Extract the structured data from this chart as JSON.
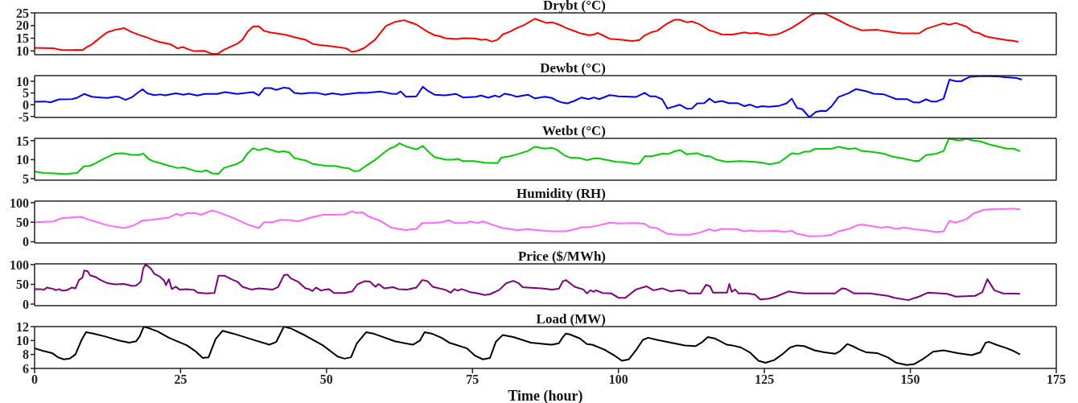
{
  "chart_data": [
    {
      "type": "line",
      "title": "Drybt (°C)",
      "color": "#ff0000",
      "xlim": [
        0,
        175
      ],
      "xticks": [
        0,
        25,
        50,
        75,
        100,
        125,
        150,
        175
      ],
      "ylim": [
        8.5,
        25
      ],
      "yticks": [
        10,
        15,
        20,
        25
      ],
      "tick_labels": "y",
      "x": [
        0,
        3.3,
        4.5,
        6.4,
        7.3,
        8.2,
        9,
        9.7,
        10.4,
        11.6,
        12.5,
        13.8,
        15.3,
        16.5,
        17.8,
        19,
        20.2,
        21.4,
        23.3,
        24.5,
        25.4,
        26.4,
        27.3,
        29.1,
        30.4,
        31.3,
        32.5,
        34.7,
        35.6,
        36.5,
        37.4,
        38.4,
        39.3,
        40.5,
        41.7,
        43.3,
        44.5,
        46.4,
        47.6,
        48.8,
        50,
        51.9,
        53.4,
        54.3,
        55.3,
        56.5,
        58.3,
        60.2,
        61.7,
        63.3,
        65.4,
        67.3,
        68.5,
        69.4,
        70.3,
        72.2,
        73.4,
        75.3,
        76.5,
        77.4,
        78.3,
        79.3,
        80.2,
        81.4,
        82.6,
        83.9,
        85.7,
        87.7,
        88.6,
        89.8,
        91,
        92.5,
        93.7,
        94.9,
        95.8,
        96.4,
        97.3,
        98.5,
        100.6,
        102.4,
        103.6,
        104.5,
        105.7,
        106.6,
        108.1,
        109.6,
        110.5,
        111.7,
        112.6,
        113.8,
        115.6,
        116.5,
        117.7,
        119.5,
        121.6,
        122.5,
        123.7,
        125.8,
        127,
        127.9,
        129.7,
        131.2,
        133,
        133.8,
        135.3,
        137.2,
        139.6,
        141.7,
        144.3,
        146.7,
        148.5,
        151.5,
        152.7,
        155.7,
        156.6,
        157.8,
        159.6,
        160.8,
        161.7,
        162.8,
        164.3,
        166.4,
        167.6,
        168.5
      ],
      "values": [
        11.2,
        11.0,
        10.4,
        10.3,
        10.4,
        10.3,
        11.6,
        12.4,
        13.7,
        15.9,
        17.4,
        18.3,
        19.0,
        17.6,
        16.4,
        15.5,
        14.4,
        13.5,
        12.6,
        11.0,
        11.5,
        10.6,
        9.9,
        10.0,
        8.8,
        8.8,
        10.5,
        12.8,
        14.4,
        17.6,
        19.6,
        19.7,
        17.9,
        17.2,
        16.8,
        16.2,
        15.4,
        14.4,
        12.8,
        12.3,
        12.1,
        11.5,
        11.0,
        9.6,
        10.0,
        11.2,
        14.4,
        19.9,
        21.4,
        22.1,
        20.4,
        17.6,
        16.2,
        15.8,
        15.0,
        14.7,
        15.0,
        14.9,
        14.4,
        14.5,
        13.7,
        14.4,
        16.5,
        17.6,
        19.0,
        20.3,
        22.7,
        21.0,
        21.3,
        20.4,
        19.1,
        17.8,
        16.8,
        16.2,
        16.4,
        17.1,
        16.2,
        14.8,
        14.4,
        13.9,
        14.3,
        16.1,
        17.4,
        17.9,
        20.4,
        22.3,
        22.3,
        21.3,
        21.6,
        20.6,
        18.1,
        17.5,
        16.5,
        16.4,
        17.3,
        16.9,
        17.1,
        16.2,
        16.4,
        17.1,
        19.1,
        21.3,
        24.2,
        24.8,
        24.8,
        22.7,
        19.9,
        18.1,
        18.3,
        17.5,
        16.9,
        16.9,
        18.7,
        20.9,
        20.3,
        21.0,
        19.6,
        17.5,
        17.1,
        15.8,
        15.1,
        14.3,
        14.0,
        13.6
      ]
    },
    {
      "type": "line",
      "title": "Dewbt (°C)",
      "color": "#0000ff",
      "xlim": [
        0,
        175
      ],
      "xticks": [
        0,
        25,
        50,
        75,
        100,
        125,
        150,
        175
      ],
      "ylim": [
        -5.4,
        12.4
      ],
      "yticks": [
        -5,
        0,
        5,
        10
      ],
      "tick_labels": "y",
      "x": [
        0,
        1.8,
        2.7,
        4.2,
        6.4,
        7.3,
        8.5,
        9.8,
        11.3,
        12.5,
        13.8,
        14.4,
        15.6,
        16.8,
        17.4,
        18.5,
        19.3,
        20.5,
        21.5,
        22.4,
        24.2,
        25.5,
        26.4,
        27.9,
        29.1,
        31.3,
        32.6,
        34.7,
        36.5,
        37.4,
        38.4,
        39.4,
        40.5,
        41.4,
        42.7,
        43.6,
        44.5,
        45.7,
        47,
        48.5,
        49.8,
        51,
        52.6,
        54.1,
        55.6,
        56.8,
        59.3,
        61.1,
        62,
        62.7,
        63.6,
        65.4,
        66.5,
        67.3,
        68.5,
        70.3,
        72.2,
        73.4,
        75.6,
        76.5,
        77.7,
        78.9,
        79.6,
        80.5,
        81.4,
        82.6,
        84.5,
        85.7,
        87.4,
        88.6,
        89.5,
        90.4,
        91.3,
        92.5,
        93.7,
        94.9,
        95.8,
        96.7,
        98.5,
        100,
        103,
        104.5,
        105.4,
        106.3,
        107.5,
        108.4,
        110.5,
        111.7,
        112.6,
        113.5,
        114.7,
        115.6,
        116.5,
        117.7,
        118.9,
        120.4,
        121.6,
        122.5,
        123.7,
        124.6,
        125.8,
        127.6,
        128.8,
        129.7,
        130.6,
        131.5,
        132.7,
        133.8,
        134.7,
        135.6,
        136.5,
        137.7,
        139.5,
        140.7,
        142.5,
        143.7,
        145.5,
        147.6,
        149.4,
        150.6,
        151.5,
        152.7,
        153.6,
        154.5,
        155.7,
        156.7,
        157.8,
        158.7,
        160.2,
        162.3,
        164.6,
        166.4,
        168.2,
        169.1
      ],
      "values": [
        1.3,
        1.4,
        1.0,
        2.3,
        2.4,
        3.0,
        4.6,
        3.4,
        3.1,
        2.9,
        3.4,
        3.4,
        2.1,
        3.4,
        4.6,
        6.6,
        4.9,
        4.1,
        4.4,
        4.0,
        4.9,
        4.3,
        4.7,
        3.9,
        4.6,
        4.6,
        5.4,
        4.6,
        5.1,
        5.4,
        4.0,
        7.1,
        7.1,
        6.3,
        7.3,
        7.0,
        5.0,
        4.7,
        5.0,
        5.0,
        4.3,
        4.9,
        4.3,
        4.7,
        5.1,
        5.0,
        5.6,
        4.7,
        4.6,
        5.7,
        3.4,
        3.6,
        7.7,
        6.0,
        4.3,
        4.0,
        4.6,
        3.1,
        3.4,
        3.9,
        3.0,
        3.9,
        3.3,
        4.7,
        4.3,
        3.4,
        4.3,
        2.7,
        3.4,
        2.9,
        1.7,
        0.9,
        0.6,
        1.7,
        3.1,
        2.4,
        3.1,
        2.4,
        4.1,
        3.6,
        3.3,
        5.1,
        3.6,
        3.6,
        2.3,
        -1.6,
        0,
        -1.7,
        -1.6,
        0.6,
        0.7,
        2.6,
        1.0,
        1.6,
        0.7,
        0.7,
        -0.6,
        0.1,
        -1.1,
        -0.6,
        -0.9,
        -0.4,
        0.6,
        2.6,
        -1.4,
        -1.9,
        -5.3,
        -3.1,
        -2.6,
        -2.7,
        -0.7,
        3.3,
        5.0,
        6.7,
        5.7,
        4.7,
        4.4,
        2.4,
        2.4,
        1.0,
        0.9,
        2.3,
        1.4,
        1.4,
        2.6,
        10.7,
        10.0,
        10.0,
        11.9,
        12.2,
        12.1,
        11.7,
        11.4,
        10.7
      ]
    },
    {
      "type": "line",
      "title": "Wetbt (°C)",
      "color": "#00cc00",
      "xlim": [
        0,
        175
      ],
      "xticks": [
        0,
        25,
        50,
        75,
        100,
        125,
        150,
        175
      ],
      "ylim": [
        4.6,
        15.6
      ],
      "yticks": [
        5,
        10,
        15
      ],
      "tick_labels": "y",
      "x": [
        0,
        1.5,
        3.3,
        5.5,
        6.4,
        7.3,
        8.4,
        9.5,
        10.4,
        11.9,
        13.8,
        15,
        16.5,
        17.8,
        18.6,
        19.6,
        20.5,
        23,
        24.5,
        25.5,
        27.6,
        28.5,
        29.4,
        30.4,
        31.5,
        32.4,
        34.7,
        35.6,
        36.5,
        37.4,
        38.4,
        39.6,
        41.7,
        42.7,
        43.6,
        44.5,
        46.4,
        47.6,
        49.8,
        51.6,
        52.9,
        53.8,
        54.7,
        55.6,
        56.5,
        58.3,
        59.9,
        60.8,
        61.8,
        62.5,
        63.6,
        65.4,
        66.5,
        67.6,
        68.5,
        70.4,
        71.6,
        72.5,
        73.4,
        75.3,
        77.1,
        79.3,
        79.9,
        81.4,
        82.6,
        84.5,
        85.7,
        87.4,
        88.6,
        89.5,
        90.7,
        91.6,
        93.4,
        94.6,
        95.8,
        96.7,
        99.7,
        101.2,
        102.7,
        103.6,
        104.5,
        105.7,
        107.5,
        108.6,
        109.6,
        110.6,
        111.7,
        113.5,
        114.7,
        115.6,
        116.8,
        118.6,
        120.7,
        123.4,
        124.6,
        125.8,
        126.7,
        127.6,
        129.7,
        130.9,
        131.8,
        132.7,
        133.6,
        136.6,
        137.7,
        139.5,
        140.7,
        141.6,
        143.1,
        145.5,
        146.7,
        149.1,
        150.6,
        151.5,
        152.7,
        154.5,
        155.7,
        156.6,
        158.4,
        159.6,
        160.8,
        162,
        163.5,
        166.5,
        167.7,
        168.8
      ],
      "values": [
        6.9,
        6.5,
        6.4,
        6.2,
        6.4,
        6.5,
        8.2,
        8.4,
        9.0,
        10.3,
        11.6,
        11.7,
        11.3,
        11.2,
        11.6,
        10.1,
        9.5,
        8.4,
        7.8,
        8.0,
        7.0,
        6.8,
        7.2,
        6.4,
        6.3,
        7.8,
        8.9,
        9.7,
        11.7,
        13.0,
        12.5,
        13.0,
        12.0,
        12.2,
        11.9,
        10.4,
        9.8,
        8.9,
        8.4,
        8.3,
        7.9,
        7.7,
        7.0,
        7.1,
        8.1,
        9.9,
        11.9,
        12.9,
        13.5,
        14.3,
        13.5,
        12.7,
        13.6,
        11.9,
        10.7,
        10.0,
        10.0,
        10.2,
        9.6,
        9.6,
        9.2,
        9.1,
        10.5,
        10.9,
        11.4,
        12.3,
        13.4,
        12.9,
        13.1,
        12.6,
        11.2,
        10.6,
        10.4,
        9.9,
        10.3,
        10.3,
        9.4,
        9.3,
        8.9,
        9.0,
        10.9,
        10.9,
        11.6,
        11.5,
        12.2,
        12.5,
        11.4,
        11.7,
        11.0,
        10.9,
        10.0,
        9.4,
        9.6,
        9.4,
        9.2,
        8.8,
        9.0,
        9.3,
        11.7,
        11.5,
        12.1,
        12.1,
        12.8,
        12.9,
        13.4,
        12.8,
        13.0,
        12.3,
        12.1,
        11.6,
        10.9,
        10.2,
        9.7,
        9.7,
        11.2,
        11.6,
        12.3,
        15.5,
        15.0,
        15.5,
        15.0,
        14.8,
        14.0,
        12.9,
        12.9,
        12.2
      ]
    },
    {
      "type": "line",
      "title": "Humidity (RH)",
      "color": "#ff66ff",
      "xlim": [
        0,
        175
      ],
      "xticks": [
        0,
        25,
        50,
        75,
        100,
        125,
        150,
        175
      ],
      "ylim": [
        -3,
        104
      ],
      "yticks": [
        0,
        50,
        100
      ],
      "tick_labels": "y",
      "x": [
        0,
        3.3,
        4.5,
        6,
        7.9,
        9,
        12.5,
        15.3,
        17,
        18.4,
        20,
        23,
        24.3,
        25.1,
        26,
        27.6,
        28.5,
        30.4,
        31.6,
        34,
        36.5,
        38.4,
        39.3,
        40.8,
        42,
        43.9,
        45.1,
        47.6,
        49.4,
        51.3,
        53.1,
        54.4,
        55,
        56.2,
        57.2,
        59.3,
        61.1,
        62.3,
        63.6,
        65.4,
        66.4,
        68,
        69.7,
        71,
        71.9,
        74,
        74.6,
        75.9,
        76.8,
        78.3,
        80.2,
        81.4,
        82.6,
        84.5,
        87.4,
        88.6,
        91,
        92.5,
        93.7,
        94.9,
        96.4,
        98.5,
        100,
        103,
        104.5,
        105.4,
        106.6,
        108.4,
        110.2,
        112.3,
        113.8,
        115.6,
        116.5,
        117.7,
        120.4,
        121.6,
        122.5,
        123.7,
        127,
        128.4,
        129.7,
        130.6,
        131.5,
        132.7,
        135.3,
        136.5,
        137.7,
        139.5,
        141,
        141.9,
        144.9,
        146.1,
        147.6,
        148.8,
        149.7,
        150.6,
        152.7,
        154.5,
        155.7,
        156.7,
        157.8,
        159.6,
        160.8,
        162.6,
        164.7,
        166.8,
        167.4,
        168.8
      ],
      "values": [
        50,
        52,
        60,
        62,
        64,
        58,
        42,
        35,
        42,
        54,
        56,
        62,
        72,
        67,
        73,
        73,
        69,
        80,
        75,
        61,
        44,
        35,
        50,
        50,
        56,
        55,
        52,
        63,
        69,
        69,
        70,
        78,
        74,
        75,
        65,
        53,
        36,
        33,
        30,
        33,
        48,
        48,
        50,
        55,
        48,
        48,
        52,
        48,
        52,
        44,
        35,
        33,
        30,
        32,
        28,
        27,
        27,
        32,
        37,
        37,
        41,
        49,
        47,
        48,
        46,
        37,
        35,
        20,
        18,
        18,
        23,
        32,
        28,
        33,
        32,
        27,
        29,
        27,
        28,
        26,
        28,
        20,
        18,
        14,
        15,
        18,
        27,
        33,
        43,
        44,
        36,
        38,
        33,
        36,
        35,
        32,
        29,
        25,
        27,
        53,
        49,
        58,
        72,
        82,
        84,
        84,
        85,
        83
      ]
    },
    {
      "type": "line",
      "title": "Price ($/MWh)",
      "color": "#800080",
      "xlim": [
        0,
        175
      ],
      "xticks": [
        0,
        25,
        50,
        75,
        100,
        125,
        150,
        175
      ],
      "ylim": [
        -4,
        102
      ],
      "yticks": [
        0,
        50,
        100
      ],
      "tick_labels": "y",
      "x": [
        0,
        1,
        1.6,
        2.1,
        3.3,
        3.6,
        4.2,
        4.7,
        5.5,
        6.4,
        7,
        7.6,
        8.2,
        8.5,
        9.1,
        9.5,
        10.4,
        11.3,
        12.5,
        13.8,
        15.3,
        16.8,
        17.4,
        18.2,
        18.6,
        19,
        19.9,
        20.5,
        21.5,
        22.2,
        22.5,
        23,
        23.5,
        24.2,
        24.8,
        26.1,
        27.3,
        27.9,
        29.4,
        30.8,
        31.5,
        32.5,
        33.7,
        34.7,
        35.6,
        37.1,
        38.4,
        40.8,
        41.7,
        42.7,
        43.3,
        43.9,
        45.1,
        46.4,
        47,
        47.6,
        48.2,
        49.1,
        49.7,
        50.4,
        51.3,
        53.1,
        54.4,
        55.3,
        56.5,
        57.4,
        58.4,
        58.9,
        59.9,
        61.4,
        62.3,
        63.9,
        65.4,
        66.4,
        67.3,
        68.2,
        70.4,
        71.3,
        71.9,
        72.5,
        73.1,
        74,
        74.6,
        75.6,
        77.1,
        78,
        79.6,
        80.8,
        82,
        82.9,
        83.6,
        84.5,
        86.8,
        88.6,
        89.8,
        90.5,
        91,
        92.5,
        94,
        94.6,
        95.2,
        95.8,
        96.1,
        97.3,
        98.8,
        100,
        101.2,
        103,
        104.8,
        106,
        107.5,
        109,
        110.2,
        111.4,
        112,
        114.1,
        115,
        115.7,
        116.2,
        118.6,
        119,
        119.4,
        120,
        120.6,
        122.1,
        123.4,
        124.3,
        125.8,
        127,
        129.1,
        130,
        131.8,
        137.1,
        138.3,
        138.9,
        140.4,
        143.1,
        146.1,
        147.3,
        149.7,
        150.6,
        151.5,
        153,
        156.3,
        157.8,
        161.1,
        162.3,
        163.2,
        164.4,
        165.9,
        168.8
      ],
      "values": [
        38,
        38,
        36,
        42,
        38,
        35,
        38,
        34,
        35,
        42,
        40,
        61,
        67,
        85,
        83,
        73,
        69,
        61,
        53,
        50,
        51,
        46,
        47,
        57,
        90,
        101,
        90,
        77,
        69,
        59,
        48,
        63,
        38,
        44,
        37,
        38,
        36,
        29,
        27,
        28,
        72,
        72,
        63,
        57,
        44,
        37,
        40,
        37,
        43,
        73,
        75,
        65,
        57,
        40,
        38,
        33,
        42,
        34,
        37,
        38,
        28,
        28,
        32,
        50,
        58,
        57,
        44,
        51,
        40,
        43,
        38,
        37,
        42,
        61,
        58,
        44,
        36,
        29,
        38,
        34,
        38,
        34,
        30,
        28,
        23,
        25,
        36,
        53,
        59,
        53,
        43,
        42,
        40,
        37,
        39,
        58,
        61,
        44,
        37,
        27,
        35,
        31,
        35,
        28,
        27,
        16,
        16,
        37,
        45,
        35,
        40,
        32,
        35,
        33,
        27,
        27,
        49,
        45,
        29,
        29,
        51,
        31,
        37,
        27,
        27,
        24,
        12,
        14,
        19,
        32,
        30,
        27,
        27,
        40,
        39,
        27,
        27,
        21,
        16,
        10,
        15,
        19,
        29,
        26,
        19,
        21,
        30,
        63,
        35,
        27,
        26
      ]
    },
    {
      "type": "line",
      "title": "Load (MW)",
      "xlabel": "Time (hour)",
      "color": "#000000",
      "xlim": [
        0,
        175
      ],
      "xticks": [
        0,
        25,
        50,
        75,
        100,
        125,
        150,
        175
      ],
      "ylim": [
        6,
        12
      ],
      "yticks": [
        6,
        8,
        10,
        12
      ],
      "x": [
        0,
        1.5,
        3,
        4,
        5,
        6,
        7,
        8,
        8.8,
        10.1,
        12,
        14.4,
        16.2,
        17.4,
        18,
        18.7,
        19.5,
        21.1,
        23,
        26.1,
        27.5,
        28.8,
        29.8,
        31,
        32.2,
        34,
        37.1,
        40.2,
        41.4,
        42.7,
        44,
        46.4,
        49.4,
        51.9,
        53.1,
        54.2,
        55.2,
        56.8,
        58,
        61.7,
        64.8,
        66,
        66.8,
        68,
        69.7,
        71,
        74,
        75.5,
        76.8,
        78,
        79,
        80.2,
        82,
        85,
        87.4,
        88.6,
        89.8,
        90.4,
        91,
        91.6,
        93.4,
        94.6,
        95.5,
        97.6,
        99.4,
        100.6,
        101.8,
        103,
        104.2,
        105.1,
        106.6,
        109,
        111.4,
        113.2,
        114.4,
        115.3,
        116.5,
        118.6,
        119.5,
        121,
        122.5,
        124,
        125.2,
        126.7,
        128.2,
        129.4,
        130.6,
        131.8,
        133.6,
        135.3,
        137.1,
        138,
        139.2,
        140.1,
        141.3,
        142.5,
        144.3,
        146.1,
        147.6,
        149.4,
        150.6,
        152.1,
        153.9,
        155.7,
        158.1,
        160.5,
        162,
        162.9,
        163.5,
        164.7,
        166.5,
        167.4,
        168.8
      ],
      "values": [
        8.9,
        8.5,
        8.2,
        7.6,
        7.3,
        7.4,
        8.0,
        10.0,
        11.2,
        11.0,
        10.6,
        10.0,
        9.7,
        9.9,
        10.6,
        12.0,
        11.8,
        11.3,
        10.4,
        9.3,
        8.5,
        7.5,
        7.6,
        10.2,
        11.4,
        11.0,
        10.2,
        9.4,
        9.8,
        12.0,
        11.7,
        10.7,
        9.3,
        7.7,
        7.4,
        7.6,
        9.6,
        11.2,
        11.0,
        9.9,
        9.4,
        10.0,
        11.2,
        11.0,
        10.4,
        9.7,
        8.9,
        7.8,
        7.3,
        7.5,
        9.8,
        10.8,
        10.5,
        9.7,
        9.5,
        9.4,
        9.6,
        10.4,
        11.0,
        10.9,
        10.3,
        9.5,
        9.4,
        8.7,
        7.8,
        7.1,
        7.3,
        8.6,
        10.1,
        10.4,
        10.1,
        9.7,
        9.3,
        9.2,
        9.8,
        10.5,
        10.3,
        9.4,
        9.3,
        9.0,
        8.3,
        7.1,
        6.8,
        7.2,
        8.1,
        9.0,
        9.3,
        9.2,
        8.6,
        8.3,
        8.1,
        8.5,
        9.5,
        9.2,
        8.7,
        8.3,
        8.2,
        7.6,
        6.8,
        6.5,
        6.6,
        7.3,
        8.4,
        8.6,
        8.2,
        7.9,
        8.3,
        9.7,
        9.8,
        9.4,
        8.9,
        8.6,
        8.0
      ]
    }
  ]
}
